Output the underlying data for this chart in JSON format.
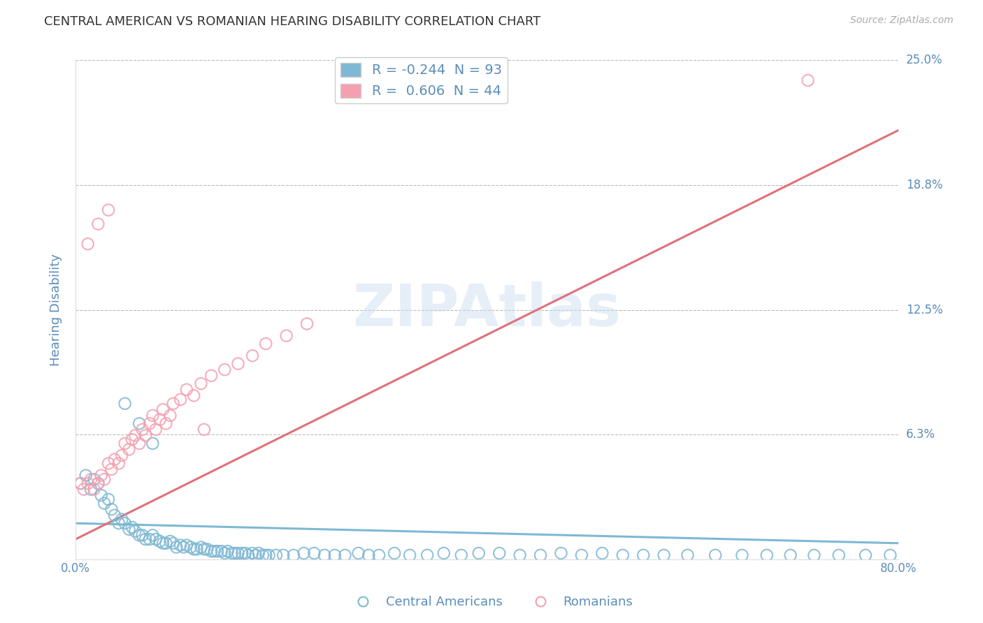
{
  "title": "CENTRAL AMERICAN VS ROMANIAN HEARING DISABILITY CORRELATION CHART",
  "source": "Source: ZipAtlas.com",
  "ylabel": "Hearing Disability",
  "xlabel": "",
  "watermark": "ZIPAtlas",
  "legend_blue_r": -0.244,
  "legend_blue_n": 93,
  "legend_pink_r": 0.606,
  "legend_pink_n": 44,
  "xlim": [
    0.0,
    0.8
  ],
  "ylim": [
    0.0,
    0.25
  ],
  "yticks": [
    0.0,
    0.0625,
    0.125,
    0.1875,
    0.25
  ],
  "ytick_labels": [
    "",
    "6.3%",
    "12.5%",
    "18.8%",
    "25.0%"
  ],
  "xticks": [
    0.0,
    0.2,
    0.4,
    0.6,
    0.8
  ],
  "xtick_labels": [
    "0.0%",
    "",
    "",
    "",
    "80.0%"
  ],
  "legend_labels": [
    "Central Americans",
    "Romanians"
  ],
  "blue_color": "#7EB8D4",
  "pink_color": "#F4A0B0",
  "pink_line_color": "#E0707A",
  "title_color": "#333333",
  "axis_label_color": "#5B8DB8",
  "grid_color": "#BBBBBB",
  "background_color": "#FFFFFF",
  "blue_scatter_x": [
    0.005,
    0.01,
    0.015,
    0.018,
    0.022,
    0.025,
    0.028,
    0.032,
    0.035,
    0.038,
    0.042,
    0.045,
    0.048,
    0.052,
    0.055,
    0.058,
    0.062,
    0.065,
    0.068,
    0.072,
    0.075,
    0.078,
    0.082,
    0.085,
    0.088,
    0.092,
    0.095,
    0.098,
    0.102,
    0.105,
    0.108,
    0.112,
    0.115,
    0.118,
    0.122,
    0.125,
    0.128,
    0.132,
    0.135,
    0.138,
    0.142,
    0.145,
    0.148,
    0.152,
    0.155,
    0.158,
    0.162,
    0.165,
    0.168,
    0.172,
    0.175,
    0.178,
    0.182,
    0.185,
    0.188,
    0.195,
    0.202,
    0.212,
    0.222,
    0.232,
    0.242,
    0.252,
    0.262,
    0.275,
    0.285,
    0.295,
    0.31,
    0.325,
    0.342,
    0.358,
    0.375,
    0.392,
    0.412,
    0.432,
    0.452,
    0.472,
    0.492,
    0.512,
    0.532,
    0.552,
    0.572,
    0.595,
    0.622,
    0.648,
    0.672,
    0.695,
    0.718,
    0.742,
    0.768,
    0.792,
    0.048,
    0.062,
    0.075
  ],
  "blue_scatter_y": [
    0.038,
    0.042,
    0.035,
    0.04,
    0.038,
    0.032,
    0.028,
    0.03,
    0.025,
    0.022,
    0.018,
    0.02,
    0.018,
    0.015,
    0.016,
    0.014,
    0.012,
    0.012,
    0.01,
    0.01,
    0.012,
    0.01,
    0.009,
    0.008,
    0.008,
    0.009,
    0.008,
    0.006,
    0.007,
    0.006,
    0.007,
    0.006,
    0.005,
    0.005,
    0.006,
    0.005,
    0.005,
    0.004,
    0.004,
    0.004,
    0.004,
    0.003,
    0.004,
    0.003,
    0.003,
    0.003,
    0.003,
    0.003,
    0.002,
    0.003,
    0.002,
    0.003,
    0.002,
    0.002,
    0.002,
    0.002,
    0.002,
    0.002,
    0.003,
    0.003,
    0.002,
    0.002,
    0.002,
    0.003,
    0.002,
    0.002,
    0.003,
    0.002,
    0.002,
    0.003,
    0.002,
    0.003,
    0.003,
    0.002,
    0.002,
    0.003,
    0.002,
    0.003,
    0.002,
    0.002,
    0.002,
    0.002,
    0.002,
    0.002,
    0.002,
    0.002,
    0.002,
    0.002,
    0.002,
    0.002,
    0.078,
    0.068,
    0.058
  ],
  "pink_scatter_x": [
    0.005,
    0.008,
    0.012,
    0.015,
    0.018,
    0.022,
    0.025,
    0.028,
    0.032,
    0.035,
    0.038,
    0.042,
    0.045,
    0.048,
    0.052,
    0.055,
    0.058,
    0.062,
    0.065,
    0.068,
    0.072,
    0.075,
    0.078,
    0.082,
    0.085,
    0.088,
    0.092,
    0.095,
    0.102,
    0.108,
    0.115,
    0.122,
    0.132,
    0.145,
    0.158,
    0.172,
    0.185,
    0.205,
    0.225,
    0.012,
    0.022,
    0.032,
    0.712,
    0.125
  ],
  "pink_scatter_y": [
    0.038,
    0.035,
    0.038,
    0.04,
    0.035,
    0.038,
    0.042,
    0.04,
    0.048,
    0.045,
    0.05,
    0.048,
    0.052,
    0.058,
    0.055,
    0.06,
    0.062,
    0.058,
    0.065,
    0.062,
    0.068,
    0.072,
    0.065,
    0.07,
    0.075,
    0.068,
    0.072,
    0.078,
    0.08,
    0.085,
    0.082,
    0.088,
    0.092,
    0.095,
    0.098,
    0.102,
    0.108,
    0.112,
    0.118,
    0.158,
    0.168,
    0.175,
    0.24,
    0.065
  ],
  "blue_line_x": [
    0.0,
    0.8
  ],
  "blue_line_y_start": 0.018,
  "blue_line_y_end": 0.008,
  "pink_line_x": [
    0.0,
    0.8
  ],
  "pink_line_y_start": 0.01,
  "pink_line_y_end": 0.215
}
